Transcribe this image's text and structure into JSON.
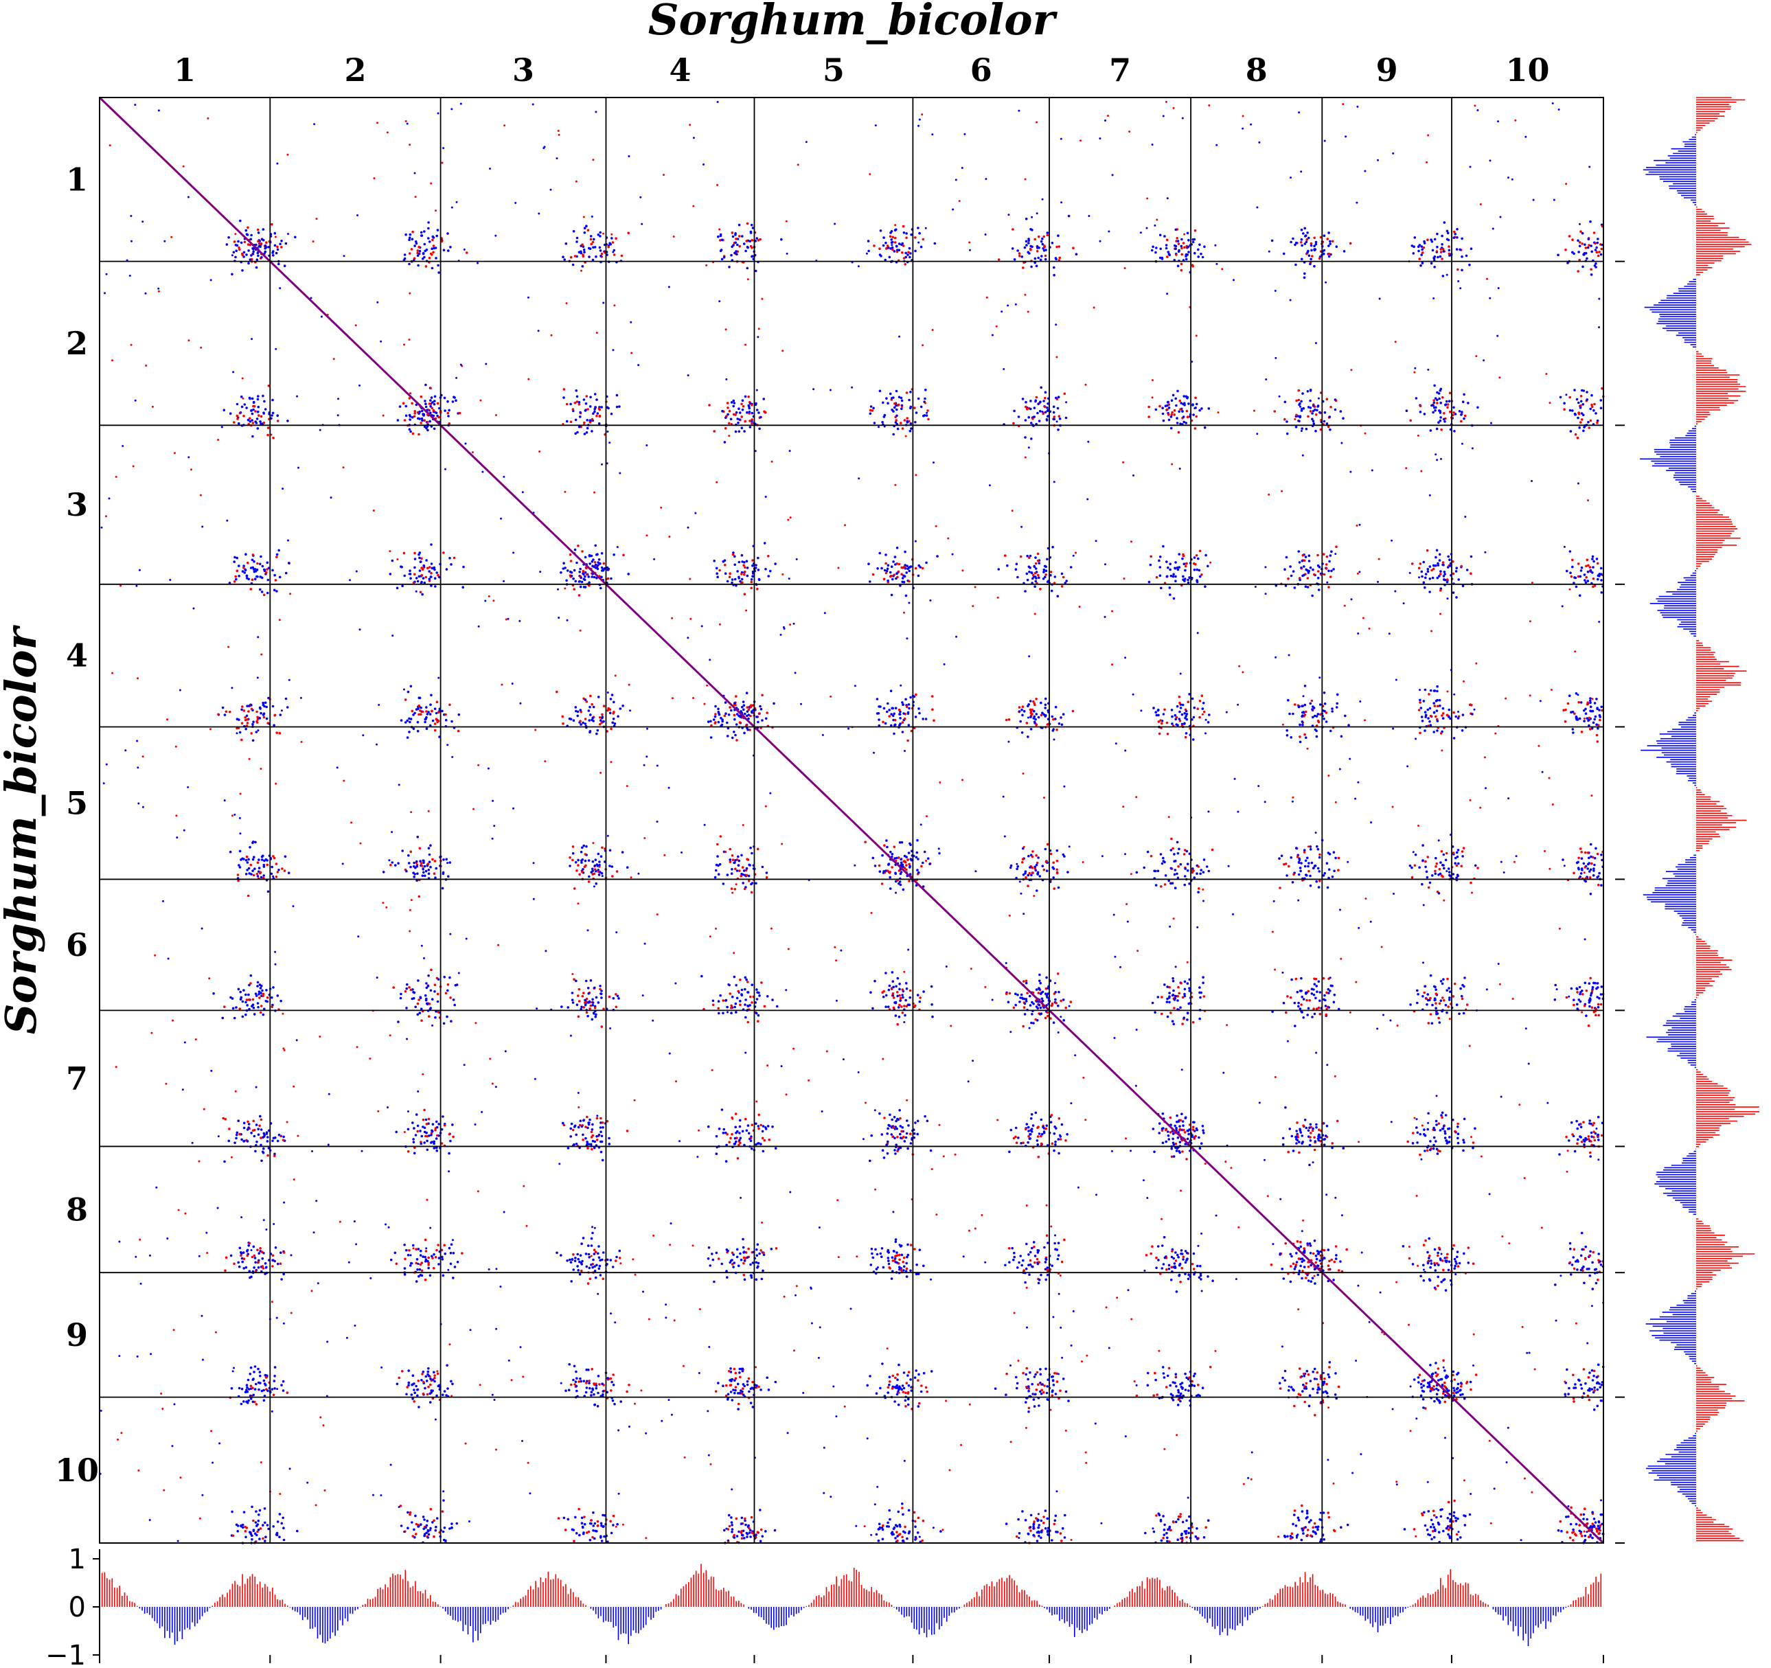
{
  "chart_data": {
    "type": "scatter",
    "subtype": "genome-dotplot",
    "title": "Sorghum_bicolor",
    "xlabel": "Sorghum_bicolor",
    "ylabel": "Sorghum_bicolor",
    "x_chromosomes": [
      "1",
      "2",
      "3",
      "4",
      "5",
      "6",
      "7",
      "8",
      "9",
      "10"
    ],
    "y_chromosomes": [
      "1",
      "2",
      "3",
      "4",
      "5",
      "6",
      "7",
      "8",
      "9",
      "10"
    ],
    "chromosome_bounds": [
      0,
      1.0,
      2.0,
      2.97,
      3.84,
      4.77,
      5.57,
      6.4,
      7.17,
      7.93,
      8.82
    ],
    "point_colors": [
      "#0000ff",
      "#ff0000",
      "#800080"
    ],
    "bottom_track": {
      "ylim": [
        -1,
        1
      ],
      "tick_labels": [
        "1",
        "0",
        "−1"
      ],
      "positive_color": "#ff0000",
      "negative_color": "#0000ff",
      "profile": [
        0.95,
        -0.9,
        0.95,
        -0.85,
        0.95,
        -0.8,
        0.9,
        -0.9,
        0.9,
        -0.6,
        0.95,
        -0.75,
        0.85,
        -0.7,
        0.8,
        -0.75,
        0.9,
        -0.6,
        0.85,
        -0.85,
        0.8
      ]
    },
    "right_track": {
      "positive_color": "#ff0000",
      "negative_color": "#0000ff",
      "profile": [
        0.8,
        -0.8,
        0.8,
        -0.85,
        0.9,
        -0.8,
        0.85,
        -0.75,
        0.8,
        -0.8,
        0.7,
        -0.85,
        0.6,
        -0.7,
        0.9,
        -0.75,
        0.8,
        -0.8,
        0.7,
        -0.8,
        0.8
      ]
    }
  }
}
